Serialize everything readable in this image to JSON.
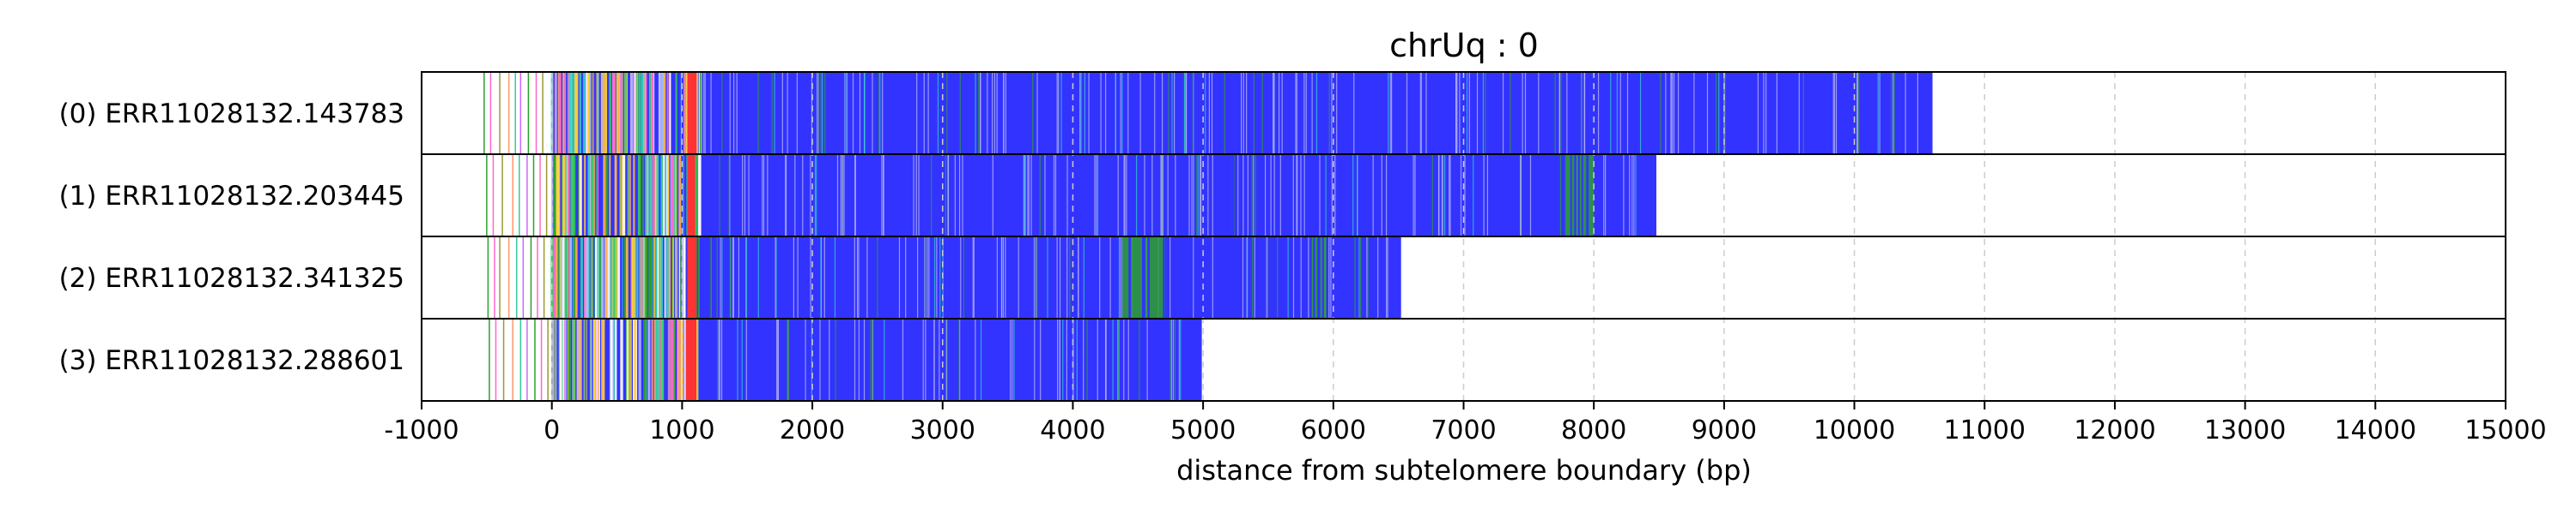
{
  "chart_data": {
    "type": "bar",
    "title": "chrUq : 0",
    "xlabel": "distance from subtelomere boundary (bp)",
    "ylabel": "",
    "xlim": [
      -1000,
      15000
    ],
    "xticks": [
      "-1000",
      "0",
      "1000",
      "2000",
      "3000",
      "4000",
      "5000",
      "6000",
      "7000",
      "8000",
      "9000",
      "10000",
      "11000",
      "12000",
      "13000",
      "14000",
      "15000"
    ],
    "grid": "vertical dashed",
    "reads": [
      {
        "label": "(0) ERR11028132.143783",
        "start": 0,
        "end": 10600,
        "start_lines": [
          -520,
          -470,
          -400,
          -330,
          -280,
          -240,
          -180,
          -120,
          -70
        ],
        "green_bands": [],
        "red_bands": [
          [
            1040,
            1110
          ]
        ]
      },
      {
        "label": "(1) ERR11028132.203445",
        "start": 0,
        "end": 8480,
        "start_lines": [
          -500,
          -450,
          -380,
          -300,
          -250,
          -190,
          -140,
          -90,
          -40
        ],
        "green_bands": [
          [
            5180,
            5260
          ],
          [
            7780,
            8000
          ]
        ],
        "red_bands": [
          [
            1040,
            1100
          ]
        ]
      },
      {
        "label": "(2) ERR11028132.341325",
        "start": 0,
        "end": 6520,
        "start_lines": [
          -490,
          -440,
          -400,
          -330,
          -270,
          -220,
          -160,
          -110,
          -60
        ],
        "green_bands": [
          [
            4380,
            4720
          ],
          [
            5820,
            5960
          ]
        ],
        "red_bands": [
          [
            1040,
            1110
          ]
        ]
      },
      {
        "label": "(3) ERR11028132.288601",
        "start": 0,
        "end": 4990,
        "start_lines": [
          -480,
          -430,
          -370,
          -300,
          -240,
          -190,
          -130,
          -80,
          -30
        ],
        "green_bands": [],
        "red_bands": [
          [
            1030,
            1110
          ]
        ]
      }
    ],
    "colors": {
      "body": "#3333ff",
      "start_lines": [
        "#2ca02c",
        "#ff66cc",
        "#999933",
        "#ff9966",
        "#33cc99",
        "#cc66ff"
      ],
      "mix": [
        "#ffd633",
        "#33cc66",
        "#ff66cc",
        "#33cccc",
        "#b8b8ff",
        "#ffffff",
        "#2ca02c",
        "#ffb347"
      ],
      "green": "#2ca02c",
      "red": "#ff3333",
      "grid": "#cccccc",
      "frame": "#000000"
    }
  }
}
